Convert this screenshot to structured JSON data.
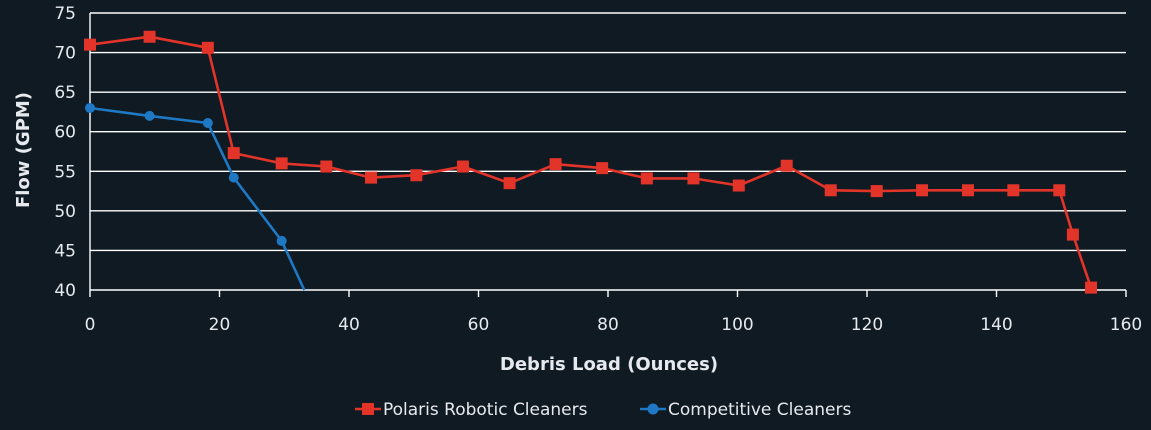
{
  "chart_data": {
    "type": "line",
    "title": "",
    "xlabel": "Debris Load (Ounces)",
    "ylabel": "Flow (GPM)",
    "xlim": [
      0,
      160
    ],
    "ylim": [
      40,
      75
    ],
    "xticks": [
      0,
      20,
      40,
      60,
      80,
      100,
      120,
      140,
      160
    ],
    "yticks": [
      40,
      45,
      50,
      55,
      60,
      65,
      70,
      75
    ],
    "grid": "horizontal",
    "legend_position": "bottom-center",
    "series": [
      {
        "name": "Polaris Robotic Cleaners",
        "color": "#e3342a",
        "marker": "square",
        "x": [
          0,
          9.2,
          18.2,
          22.2,
          29.6,
          36.5,
          43.4,
          50.4,
          57.6,
          64.8,
          71.9,
          79.1,
          86.0,
          93.2,
          100.2,
          107.6,
          114.4,
          121.5,
          128.5,
          135.6,
          142.6,
          149.7,
          151.8,
          154.6
        ],
        "y": [
          71,
          72,
          70.6,
          57.3,
          56,
          55.6,
          54.2,
          54.5,
          55.6,
          53.5,
          55.9,
          55.4,
          54.1,
          54.1,
          53.2,
          55.7,
          52.6,
          52.5,
          52.6,
          52.6,
          52.6,
          52.6,
          47,
          40.3
        ]
      },
      {
        "name": "Competitive Cleaners",
        "color": "#1f78c4",
        "marker": "circle",
        "x": [
          0,
          9.2,
          18.2,
          22.2,
          29.6,
          33.1
        ],
        "y": [
          63,
          62,
          61.1,
          54.2,
          46.2,
          40
        ]
      }
    ]
  }
}
